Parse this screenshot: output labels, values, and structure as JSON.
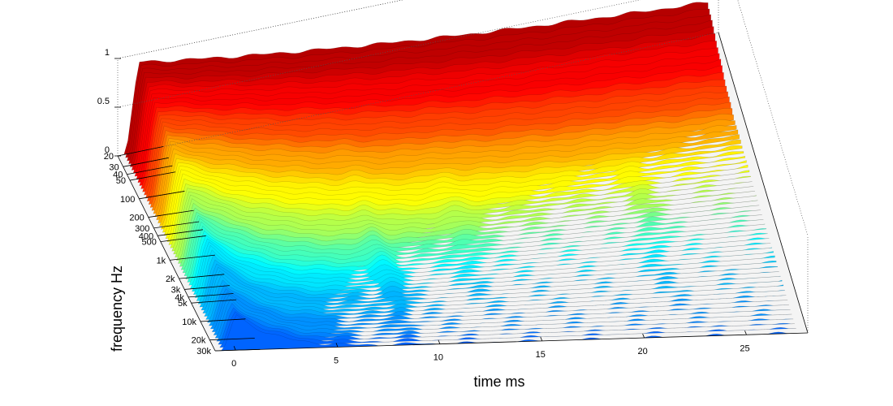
{
  "chart_data": {
    "type": "surface",
    "title": "",
    "xlabel": "time   ms",
    "ylabel": "frequency   Hz",
    "zlabel": "",
    "x_ticks": [
      0,
      5,
      10,
      15,
      20,
      25
    ],
    "y_ticks": [
      "20",
      "30",
      "40",
      "50",
      "100",
      "200",
      "300",
      "400",
      "500",
      "1k",
      "2k",
      "3k",
      "4k",
      "5k",
      "10k",
      "20k",
      "30k"
    ],
    "y_tick_values": [
      20,
      30,
      40,
      50,
      100,
      200,
      300,
      400,
      500,
      1000,
      2000,
      3000,
      4000,
      5000,
      10000,
      20000,
      30000
    ],
    "z_ticks": [
      "0",
      "0.5",
      "1"
    ],
    "xlim": [
      -1,
      28
    ],
    "ylim": [
      20,
      30000
    ],
    "zlim": [
      0,
      1
    ],
    "y_scale": "log",
    "colormap": "jet",
    "grid": false,
    "colors": {
      "low": "#00008f",
      "mid": "#00ffff",
      "high": "#ff0000",
      "peak": "#800000"
    }
  }
}
